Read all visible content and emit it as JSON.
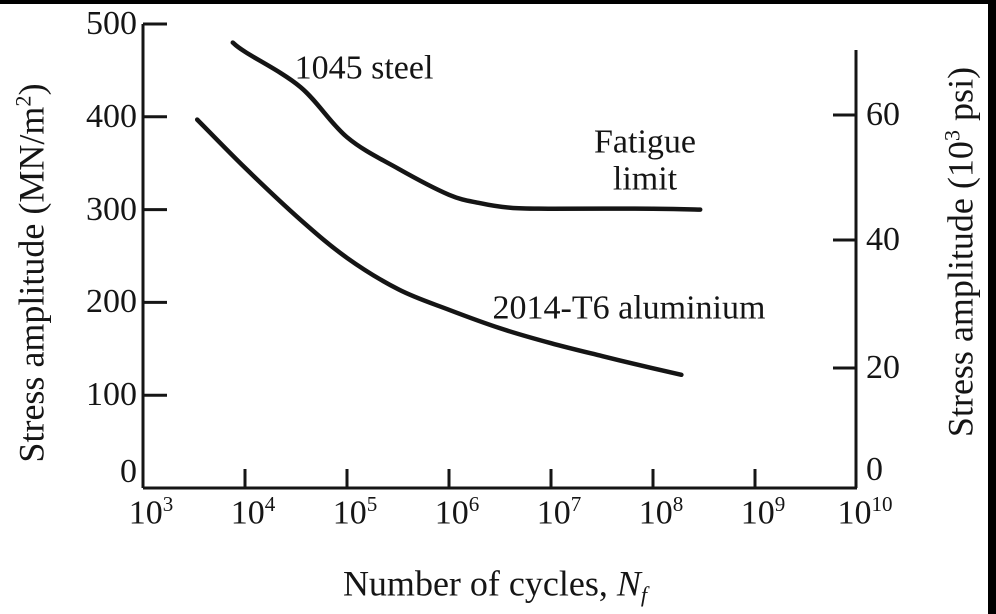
{
  "figure": {
    "background": "#ffffff",
    "ink": "#151515",
    "y_left": {
      "title_pre": "Stress amplitude (MN/m",
      "title_sup": "2",
      "title_post": ")",
      "ticks": [
        500,
        400,
        300,
        200,
        100,
        0
      ]
    },
    "y_right": {
      "title_pre": "Stress amplitude (10",
      "title_sup": "3",
      "title_post": " psi)",
      "ticks": [
        60,
        40,
        20,
        0
      ]
    },
    "x_axis": {
      "title_pre": "Number of cycles, ",
      "title_var": "N",
      "title_sub": "f",
      "ticks": [
        {
          "base": "10",
          "exp": "3"
        },
        {
          "base": "10",
          "exp": "4"
        },
        {
          "base": "10",
          "exp": "5"
        },
        {
          "base": "10",
          "exp": "6"
        },
        {
          "base": "10",
          "exp": "7"
        },
        {
          "base": "10",
          "exp": "8"
        },
        {
          "base": "10",
          "exp": "9"
        },
        {
          "base": "10",
          "exp": "10"
        }
      ]
    },
    "annotations": {
      "steel": "1045 steel",
      "fatigue_line1": "Fatigue",
      "fatigue_line2": "limit",
      "aluminium": "2014-T6 aluminium"
    }
  },
  "chart_data": {
    "type": "line",
    "title": "",
    "xlabel": "Number of cycles, Nf",
    "ylabel_left": "Stress amplitude (MN/m^2)",
    "ylabel_right": "Stress amplitude (10^3 psi)",
    "x_scale": "log",
    "xlim": [
      1000,
      10000000000
    ],
    "ylim_left": [
      0,
      500
    ],
    "ylim_right": [
      0,
      72
    ],
    "grid": false,
    "legend": "none (curves labeled inline)",
    "x_tick_values": [
      1000.0,
      10000.0,
      100000.0,
      1000000.0,
      10000000.0,
      100000000.0,
      1000000000.0,
      10000000000.0
    ],
    "y_left_tick_values": [
      0,
      100,
      200,
      300,
      400,
      500
    ],
    "y_right_tick_values": [
      0,
      20,
      40,
      60
    ],
    "series": [
      {
        "name": "1045 steel",
        "units": {
          "x": "cycles",
          "y": "MN/m^2"
        },
        "note": "Fatigue limit plateau at ~300 MN/m^2 beyond ~10^6 cycles",
        "points": [
          [
            7600,
            480
          ],
          [
            10000,
            470
          ],
          [
            35000,
            432
          ],
          [
            100000,
            378
          ],
          [
            320000,
            344
          ],
          [
            1000000.0,
            316
          ],
          [
            2000000.0,
            307
          ],
          [
            4000000.0,
            302
          ],
          [
            10000000.0,
            301
          ],
          [
            100000000.0,
            301
          ],
          [
            290000000.0,
            300
          ]
        ]
      },
      {
        "name": "2014-T6 aluminium",
        "units": {
          "x": "cycles",
          "y": "MN/m^2"
        },
        "note": "No fatigue limit; continues to decline",
        "points": [
          [
            3400,
            397
          ],
          [
            10000,
            345
          ],
          [
            35000,
            289
          ],
          [
            100000,
            248
          ],
          [
            320000,
            214
          ],
          [
            1000000.0,
            192
          ],
          [
            3200000.0,
            172
          ],
          [
            10000000.0,
            156
          ],
          [
            32000000.0,
            142
          ],
          [
            100000000.0,
            129
          ],
          [
            190000000.0,
            122
          ]
        ]
      }
    ],
    "annotations": [
      "1045 steel",
      "Fatigue limit",
      "2014-T6 aluminium"
    ]
  }
}
